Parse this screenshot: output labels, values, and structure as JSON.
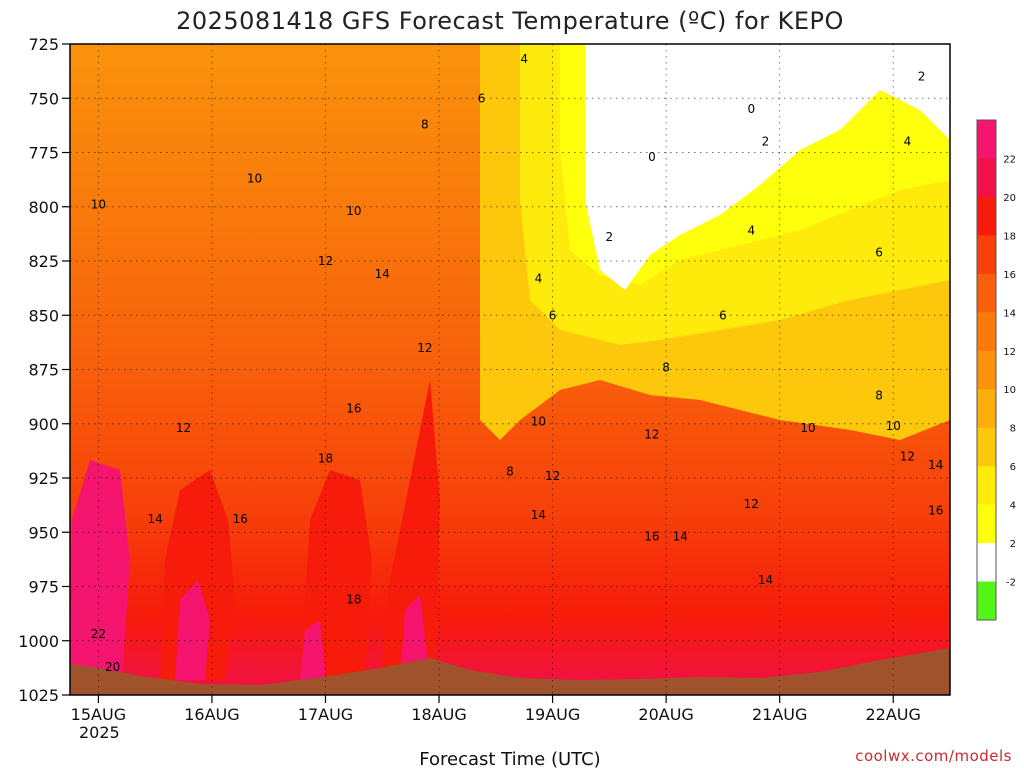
{
  "chart_data": {
    "type": "heatmap",
    "title": "2025081418 GFS Forecast Temperature (ºC) for KEPO",
    "xlabel": "Forecast Time (UTC)",
    "ylabel": "",
    "credit": "coolwx.com/models",
    "y_axis": {
      "ticks": [
        "725",
        "750",
        "775",
        "800",
        "825",
        "850",
        "875",
        "900",
        "925",
        "950",
        "975",
        "1000",
        "1025"
      ],
      "ylim": [
        725,
        1025
      ],
      "inverted": true
    },
    "x_axis": {
      "ticks": [
        "15AUG",
        "16AUG",
        "17AUG",
        "18AUG",
        "19AUG",
        "20AUG",
        "21AUG",
        "22AUG"
      ],
      "year_label": "2025",
      "xlim": [
        "2025-08-14 18Z",
        "2025-08-22 12Z"
      ]
    },
    "grid": true,
    "colorbar": {
      "labels": [
        "22",
        "20",
        "18",
        "16",
        "14",
        "12",
        "10",
        "8",
        "6",
        "4",
        "2",
        "-2"
      ],
      "colors": [
        "#f5146e",
        "#f0104a",
        "#f71b0b",
        "#f7400a",
        "#f85f0b",
        "#f97a0b",
        "#fa930b",
        "#fbad0c",
        "#fdc80b",
        "#feeb0c",
        "#feff0a",
        "#ffffff",
        "#55f519"
      ],
      "placement": "right"
    },
    "contour_labels": [
      {
        "text": "4",
        "x": "2025-08-18 18Z",
        "y": 732
      },
      {
        "text": "6",
        "x": "2025-08-18 09Z",
        "y": 750
      },
      {
        "text": "8",
        "x": "2025-08-17 21Z",
        "y": 762
      },
      {
        "text": "0",
        "x": "2025-08-20 18Z",
        "y": 755
      },
      {
        "text": "2",
        "x": "2025-08-22 06Z",
        "y": 740
      },
      {
        "text": "0",
        "x": "2025-08-19 21Z",
        "y": 777
      },
      {
        "text": "2",
        "x": "2025-08-20 21Z",
        "y": 770
      },
      {
        "text": "4",
        "x": "2025-08-22 03Z",
        "y": 770
      },
      {
        "text": "10",
        "x": "2025-08-16 09Z",
        "y": 787
      },
      {
        "text": "10",
        "x": "2025-08-15 00Z",
        "y": 799
      },
      {
        "text": "10",
        "x": "2025-08-17 06Z",
        "y": 802
      },
      {
        "text": "2",
        "x": "2025-08-19 12Z",
        "y": 814
      },
      {
        "text": "4",
        "x": "2025-08-20 18Z",
        "y": 811
      },
      {
        "text": "6",
        "x": "2025-08-21 21Z",
        "y": 821
      },
      {
        "text": "12",
        "x": "2025-08-17 00Z",
        "y": 825
      },
      {
        "text": "14",
        "x": "2025-08-17 12Z",
        "y": 831
      },
      {
        "text": "4",
        "x": "2025-08-18 21Z",
        "y": 833
      },
      {
        "text": "6",
        "x": "2025-08-19 00Z",
        "y": 850
      },
      {
        "text": "6",
        "x": "2025-08-20 12Z",
        "y": 850
      },
      {
        "text": "12",
        "x": "2025-08-17 21Z",
        "y": 865
      },
      {
        "text": "8",
        "x": "2025-08-20 00Z",
        "y": 874
      },
      {
        "text": "8",
        "x": "2025-08-21 21Z",
        "y": 887
      },
      {
        "text": "16",
        "x": "2025-08-17 06Z",
        "y": 893
      },
      {
        "text": "10",
        "x": "2025-08-18 21Z",
        "y": 899
      },
      {
        "text": "12",
        "x": "2025-08-15 18Z",
        "y": 902
      },
      {
        "text": "10",
        "x": "2025-08-21 06Z",
        "y": 902
      },
      {
        "text": "10",
        "x": "2025-08-22 00Z",
        "y": 901
      },
      {
        "text": "12",
        "x": "2025-08-19 21Z",
        "y": 905
      },
      {
        "text": "18",
        "x": "2025-08-17 00Z",
        "y": 916
      },
      {
        "text": "12",
        "x": "2025-08-22 03Z",
        "y": 915
      },
      {
        "text": "14",
        "x": "2025-08-22 09Z",
        "y": 919
      },
      {
        "text": "8",
        "x": "2025-08-18 15Z",
        "y": 922
      },
      {
        "text": "12",
        "x": "2025-08-19 00Z",
        "y": 924
      },
      {
        "text": "12",
        "x": "2025-08-20 18Z",
        "y": 937
      },
      {
        "text": "14",
        "x": "2025-08-15 12Z",
        "y": 944
      },
      {
        "text": "16",
        "x": "2025-08-16 06Z",
        "y": 944
      },
      {
        "text": "14",
        "x": "2025-08-18 21Z",
        "y": 942
      },
      {
        "text": "16",
        "x": "2025-08-22 09Z",
        "y": 940
      },
      {
        "text": "16",
        "x": "2025-08-19 21Z",
        "y": 952
      },
      {
        "text": "14",
        "x": "2025-08-20 03Z",
        "y": 952
      },
      {
        "text": "14",
        "x": "2025-08-20 21Z",
        "y": 972
      },
      {
        "text": "18",
        "x": "2025-08-17 06Z",
        "y": 981
      },
      {
        "text": "22",
        "x": "2025-08-15 00Z",
        "y": 997
      },
      {
        "text": "20",
        "x": "2025-08-15 03Z",
        "y": 1012
      }
    ]
  }
}
